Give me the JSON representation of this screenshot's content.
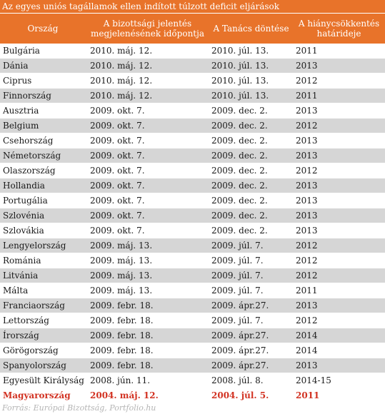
{
  "title": "Az egyes uniós tagállamok ellen indított túlzott deficit eljárások",
  "headers": [
    "Ország",
    "A bizottsági jelentés megjelenésének időpontja",
    "A Tanács döntése",
    "A hiánycsökkentés határideje"
  ],
  "rows": [
    [
      "Bulgária",
      "2010. máj. 12.",
      "2010. júl. 13.",
      "2011"
    ],
    [
      "Dánia",
      "2010. máj. 12.",
      "2010. júl. 13.",
      "2013"
    ],
    [
      "Ciprus",
      "2010. máj. 12.",
      "2010. júl. 13.",
      "2012"
    ],
    [
      "Finnország",
      "2010. máj. 12.",
      "2010. júl. 13.",
      "2011"
    ],
    [
      "Ausztria",
      "2009. okt. 7.",
      "2009. dec. 2.",
      "2013"
    ],
    [
      "Belgium",
      "2009. okt. 7.",
      "2009. dec. 2.",
      "2012"
    ],
    [
      "Csehország",
      "2009. okt. 7.",
      "2009. dec. 2.",
      "2013"
    ],
    [
      "Németország",
      "2009. okt. 7.",
      "2009. dec. 2.",
      "2013"
    ],
    [
      "Olaszország",
      "2009. okt. 7.",
      "2009. dec. 2.",
      "2012"
    ],
    [
      "Hollandia",
      "2009. okt. 7.",
      "2009. dec. 2.",
      "2013"
    ],
    [
      "Portugália",
      "2009. okt. 7.",
      "2009. dec. 2.",
      "2013"
    ],
    [
      "Szlovénia",
      "2009. okt. 7.",
      "2009. dec. 2.",
      "2013"
    ],
    [
      "Szlovákia",
      "2009. okt. 7.",
      "2009. dec. 2.",
      "2013"
    ],
    [
      "Lengyelország",
      "2009. máj. 13.",
      "2009. júl. 7.",
      "2012"
    ],
    [
      "Románia",
      "2009. máj. 13.",
      "2009. júl. 7.",
      "2012"
    ],
    [
      "Litvánia",
      "2009. máj. 13.",
      "2009. júl. 7.",
      "2012"
    ],
    [
      "Málta",
      "2009. máj. 13.",
      "2009. júl. 7.",
      "2011"
    ],
    [
      "Franciaország",
      "2009. febr. 18.",
      "2009. ápr.27.",
      "2013"
    ],
    [
      "Lettország",
      "2009. febr. 18.",
      "2009. júl. 7.",
      "2012"
    ],
    [
      "Írország",
      "2009. febr. 18.",
      "2009. ápr.27.",
      "2014"
    ],
    [
      "Görögország",
      "2009. febr. 18.",
      "2009. ápr.27.",
      "2014"
    ],
    [
      "Spanyolország",
      "2009. febr. 18.",
      "2009. ápr.27.",
      "2013"
    ],
    [
      "Egyesült Királyság",
      "2008. jún. 11.",
      "2008. júl. 8.",
      "2014-15"
    ]
  ],
  "highlight_row": [
    "Magyarország",
    "2004. máj. 12.",
    "2004. júl. 5.",
    "2011"
  ],
  "source": "Forrás: Európai Bizottság, Portfolio.hu",
  "colors": {
    "header_bg": "#e8732a",
    "stripe": "#d6d6d6",
    "highlight_text": "#d23222",
    "source_text": "#b5b5b5"
  }
}
